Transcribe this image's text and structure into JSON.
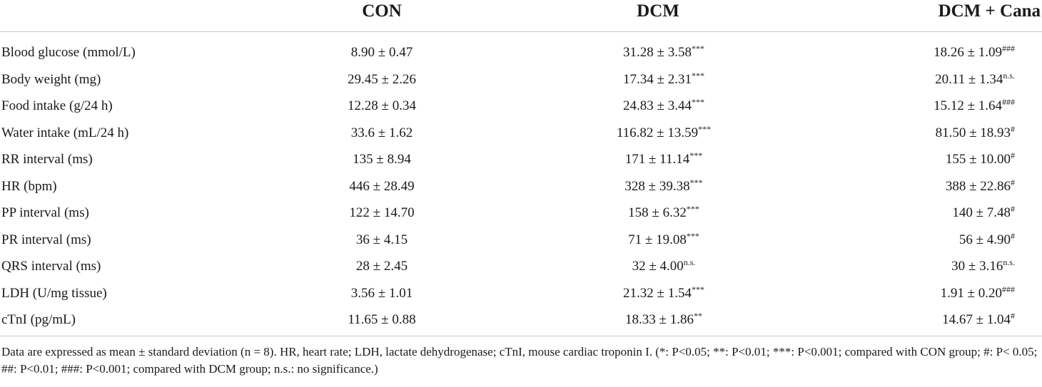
{
  "table": {
    "headers": [
      "",
      "CON",
      "DCM",
      "DCM + Cana"
    ],
    "rows": [
      {
        "label": "Blood glucose (mmol/L)",
        "con": "8.90 ± 0.47",
        "con_sup": "",
        "dcm": "31.28 ± 3.58",
        "dcm_sup": "***",
        "cana": "18.26 ± 1.09",
        "cana_sup": "###"
      },
      {
        "label": "Body weight (mg)",
        "con": "29.45 ± 2.26",
        "con_sup": "",
        "dcm": "17.34 ± 2.31",
        "dcm_sup": "***",
        "cana": "20.11 ± 1.34",
        "cana_sup": "n.s."
      },
      {
        "label": "Food intake (g/24 h)",
        "con": "12.28 ± 0.34",
        "con_sup": "",
        "dcm": "24.83 ± 3.44",
        "dcm_sup": "***",
        "cana": "15.12 ± 1.64",
        "cana_sup": "###"
      },
      {
        "label": "Water intake (mL/24 h)",
        "con": "33.6 ± 1.62",
        "con_sup": "",
        "dcm": "116.82 ± 13.59",
        "dcm_sup": "***",
        "cana": "81.50 ± 18.93",
        "cana_sup": "#"
      },
      {
        "label": "RR interval (ms)",
        "con": "135 ± 8.94",
        "con_sup": "",
        "dcm": "171 ± 11.14",
        "dcm_sup": "***",
        "cana": "155 ± 10.00",
        "cana_sup": "#"
      },
      {
        "label": "HR (bpm)",
        "con": "446 ± 28.49",
        "con_sup": "",
        "dcm": "328 ± 39.38",
        "dcm_sup": "***",
        "cana": "388 ± 22.86",
        "cana_sup": "#"
      },
      {
        "label": "PP interval (ms)",
        "con": "122 ± 14.70",
        "con_sup": "",
        "dcm": "158 ± 6.32",
        "dcm_sup": "***",
        "cana": "140 ± 7.48",
        "cana_sup": "#"
      },
      {
        "label": "PR interval (ms)",
        "con": "36 ± 4.15",
        "con_sup": "",
        "dcm": "71 ± 19.08",
        "dcm_sup": "***",
        "cana": "56 ± 4.90",
        "cana_sup": "#"
      },
      {
        "label": "QRS interval (ms)",
        "con": "28 ± 2.45",
        "con_sup": "",
        "dcm": "32 ± 4.00",
        "dcm_sup": "n.s.",
        "cana": "30 ± 3.16",
        "cana_sup": "n.s."
      },
      {
        "label": "LDH (U/mg tissue)",
        "con": "3.56 ± 1.01",
        "con_sup": "",
        "dcm": "21.32 ± 1.54",
        "dcm_sup": "***",
        "cana": "1.91 ± 0.20",
        "cana_sup": "###"
      },
      {
        "label": "cTnI (pg/mL)",
        "con": "11.65 ± 0.88",
        "con_sup": "",
        "dcm": "18.33 ± 1.86",
        "dcm_sup": "**",
        "cana": "14.67 ± 1.04",
        "cana_sup": "#"
      }
    ]
  },
  "footnote": "Data are expressed as mean ± standard deviation (n = 8). HR, heart rate; LDH, lactate dehydrogenase; cTnI, mouse cardiac troponin I. (*: P<0.05; **: P<0.01; ***: P<0.001; compared with CON group; #: P< 0.05; ##: P<0.01; ###: P<0.001; compared with DCM group; n.s.: no significance.)"
}
